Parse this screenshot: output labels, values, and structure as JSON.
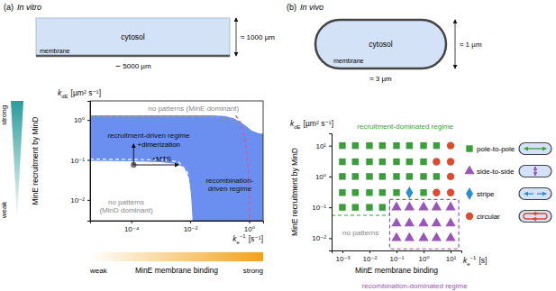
{
  "chart_data": [
    {
      "type": "phase_diagram",
      "panel": "(a)",
      "subtitle": "In vitro",
      "schematic": {
        "cytosol": "cytosol",
        "membrane": "membrane",
        "width_label": "∼ 5000 µm",
        "height_label": "≈ 1000 µm"
      },
      "x_label": {
        "base": "k",
        "sub": "e",
        "sup": "−1",
        "unit": "[s⁻¹]"
      },
      "y_label": {
        "base": "k",
        "sub": "dE",
        "unit": "[µm² s⁻¹]"
      },
      "x_gradient": {
        "title": "MinE membrane binding",
        "low": "weak",
        "high": "strong",
        "color": "#f2a21c"
      },
      "y_gradient": {
        "title": "MinE recruitment by MinD",
        "low": "weak",
        "high": "strong",
        "color": "#2a9d9c"
      },
      "log": true,
      "xlim": [
        4e-06,
        3
      ],
      "ylim": [
        0.003,
        3
      ],
      "xticks": [
        {
          "value": 0.0001,
          "label": "10⁻⁴"
        },
        {
          "value": 0.01,
          "label": "10⁻²"
        },
        {
          "value": 1,
          "label": "10⁰"
        }
      ],
      "yticks": [
        {
          "value": 0.01,
          "label": "10⁻²"
        },
        {
          "value": 0.1,
          "label": "10⁻¹"
        },
        {
          "value": 1,
          "label": "10⁰"
        }
      ],
      "areas": [
        {
          "color": "#6b8ff0",
          "x": [
            4e-06,
            0.05,
            0.15,
            0.3,
            0.5,
            0.8,
            1.2,
            2,
            3,
            3,
            0.012,
            0.0115,
            0.0105,
            0.009,
            0.007,
            0.005,
            0.003,
            0.001,
            0.0001,
            4e-06
          ],
          "y": [
            1.3,
            1.3,
            1.25,
            1.1,
            0.9,
            0.7,
            0.55,
            0.47,
            0.45,
            0.003,
            0.003,
            0.006,
            0.015,
            0.035,
            0.055,
            0.07,
            0.08,
            0.088,
            0.092,
            0.095
          ]
        }
      ],
      "lines": [
        {
          "color": "#9a9a9a",
          "line_style": "dashed",
          "x": [
            4e-06,
            0.03,
            0.12,
            0.25,
            0.4
          ],
          "y": [
            1.22,
            1.22,
            1.15,
            1.0,
            0.85
          ]
        },
        {
          "color": "#ffffff",
          "line_style": "dashed",
          "x": [
            4e-06,
            0.001,
            0.004,
            0.008,
            0.0095,
            0.0105
          ],
          "y": [
            0.105,
            0.1,
            0.09,
            0.05,
            0.02,
            0.003
          ]
        },
        {
          "color": "#e0508a",
          "line_style": "dashed",
          "x": [
            0.35,
            0.55,
            0.75,
            0.9,
            1.0,
            1.05
          ],
          "y": [
            1.3,
            0.8,
            0.3,
            0.08,
            0.02,
            0.003
          ]
        }
      ],
      "point": {
        "color": "#777777",
        "x": 0.00012,
        "y": 0.075
      },
      "arrows": [
        {
          "text": "+dimerization",
          "x": [
            0.00012,
            0.00012
          ],
          "y": [
            0.075,
            0.25
          ]
        },
        {
          "text": "+MTS",
          "x": [
            0.00012,
            0.004
          ],
          "y": [
            0.075,
            0.075
          ]
        }
      ],
      "annotations": [
        {
          "text": [
            "no patterns (MinE dominant)"
          ],
          "color": "#888888",
          "x": 0.013,
          "y": 2.0
        },
        {
          "text": [
            "recruitment-driven regime"
          ],
          "color": "#111111",
          "x": 0.00039,
          "y": 0.42
        },
        {
          "text": [
            "recombination-",
            "driven regime"
          ],
          "color": "#111111",
          "x": 0.22,
          "y": 0.024
        },
        {
          "text": [
            "no patterns",
            "(MinD dominant)"
          ],
          "color": "#888888",
          "x": 6.7e-05,
          "y": 0.0072
        }
      ]
    },
    {
      "type": "scatter",
      "panel": "(b)",
      "subtitle": "In vivo",
      "schematic": {
        "cytosol": "cytosol",
        "membrane": "membrane",
        "width_label": "≈ 3 µm",
        "height_label": "≈ 1 µm"
      },
      "x_label": {
        "base": "k",
        "sub": "e",
        "sup": "−1",
        "unit": "[s]"
      },
      "y_label": {
        "base": "k",
        "sub": "dE",
        "unit": "[µm² s⁻¹]"
      },
      "x_title": "MinE membrane binding",
      "y_title": "MinE recruitment by MinD",
      "log": true,
      "xlim": [
        0.0004,
        25
      ],
      "ylim": [
        0.004,
        25
      ],
      "xticks": [
        {
          "value": 0.001,
          "label": "10⁻³"
        },
        {
          "value": 0.01,
          "label": "10⁻²"
        },
        {
          "value": 0.1,
          "label": "10⁻¹"
        },
        {
          "value": 1,
          "label": "10⁰"
        },
        {
          "value": 10,
          "label": "10¹"
        }
      ],
      "yticks": [
        {
          "value": 0.01,
          "label": "10⁻²"
        },
        {
          "value": 0.1,
          "label": "10⁻¹"
        },
        {
          "value": 1,
          "label": "10⁰"
        },
        {
          "value": 10,
          "label": "10¹"
        }
      ],
      "legend": "right",
      "series": [
        {
          "name": "pole-to-pole",
          "color": "#3a9e3a",
          "marker": "square",
          "x": [
            0.001,
            0.003,
            0.01,
            0.03,
            0.1,
            0.3,
            1,
            3,
            0.001,
            0.003,
            0.01,
            0.03,
            0.1,
            0.3,
            1,
            0.001,
            0.003,
            0.01,
            0.03,
            0.1,
            0.3,
            1,
            3,
            0.001,
            0.003,
            0.01,
            0.03,
            0.1,
            1,
            0.001,
            0.003,
            0.01,
            0.03
          ],
          "y": [
            10,
            10,
            10,
            10,
            10,
            10,
            10,
            10,
            3,
            3,
            3,
            3,
            3,
            3,
            3,
            1,
            1,
            1,
            1,
            1,
            1,
            1,
            1,
            0.3,
            0.3,
            0.3,
            0.3,
            0.3,
            0.3,
            0.1,
            0.1,
            0.1,
            0.1
          ]
        },
        {
          "name": "side-to-side",
          "color": "#9a55b8",
          "marker": "triangle",
          "x": [
            0.1,
            0.3,
            1,
            3,
            10,
            0.1,
            0.3,
            1,
            3,
            10,
            0.1,
            0.3,
            1,
            3,
            10
          ],
          "y": [
            0.1,
            0.1,
            0.1,
            0.1,
            0.1,
            0.03,
            0.03,
            0.03,
            0.03,
            0.03,
            0.01,
            0.01,
            0.01,
            0.01,
            0.01
          ]
        },
        {
          "name": "stripe",
          "color": "#2a8fd0",
          "marker": "diamond",
          "x": [
            0.3
          ],
          "y": [
            0.3
          ]
        },
        {
          "name": "circular",
          "color": "#e04a2e",
          "marker": "circle",
          "x": [
            10,
            3,
            10,
            10,
            3,
            10
          ],
          "y": [
            10,
            3,
            3,
            1,
            0.3,
            0.3
          ]
        }
      ],
      "lines": [
        {
          "color": "#3a9e3a",
          "line_style": "dashed",
          "x": [
            0.0004,
            0.056,
            0.056
          ],
          "y": [
            0.055,
            0.055,
            0.18
          ]
        },
        {
          "color": "#9a55b8",
          "line_style": "dashed",
          "x": [
            0.056,
            20,
            20,
            0.056,
            0.056
          ],
          "y": [
            0.18,
            0.18,
            0.0045,
            0.0045,
            0.18
          ]
        }
      ],
      "annotations": [
        {
          "text": [
            "recruitment-dominated regime"
          ],
          "color": "#3a9e3a",
          "x": 0.21,
          "y": 43
        },
        {
          "text": [
            "recombination-dominated regime"
          ],
          "color": "#9a55b8",
          "x": 0.47,
          "y": 0.0003
        },
        {
          "text": [
            "no patterns"
          ],
          "color": "#888888",
          "x": 0.0047,
          "y": 0.015
        }
      ]
    }
  ]
}
